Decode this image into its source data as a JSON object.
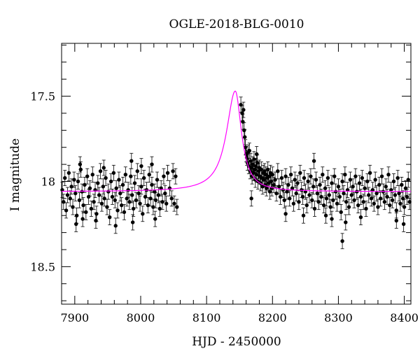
{
  "chart_data": {
    "type": "scatter",
    "title": "OGLE-2018-BLG-0010",
    "xlabel": "HJD - 2450000",
    "ylabel": "I magnitude",
    "xlim": [
      7880,
      8410
    ],
    "ylim": [
      18.72,
      17.19
    ],
    "y_inverted": true,
    "x_major_ticks": [
      7900,
      8000,
      8100,
      8200,
      8300,
      8400
    ],
    "x_tick_labels": [
      "7900",
      "8000",
      "8100",
      "8200",
      "8300",
      "8400"
    ],
    "x_minor_step": 20,
    "y_major_ticks": [
      17.5,
      18,
      18.5
    ],
    "y_tick_labels": [
      "17.5",
      "18",
      "18.5"
    ],
    "y_minor_step": 0.1,
    "grid": false,
    "colors": {
      "data": "#000000",
      "model": "#ff00ff",
      "axes": "#000000"
    },
    "series": [
      {
        "kind": "observations-with-error-bars",
        "marker": "filled-circle",
        "typical_error": 0.045,
        "points": [
          [
            7881,
            18.05
          ],
          [
            7883,
            18.12
          ],
          [
            7885,
            17.98
          ],
          [
            7887,
            18.17
          ],
          [
            7889,
            18.08
          ],
          [
            7891,
            17.95
          ],
          [
            7893,
            18.1
          ],
          [
            7895,
            18.03
          ],
          [
            7897,
            18.15
          ],
          [
            7899,
            17.99
          ],
          [
            7901,
            18.07
          ],
          [
            7903,
            18.2
          ],
          [
            7905,
            18.0
          ],
          [
            7907,
            18.11
          ],
          [
            7909,
            17.93
          ],
          [
            7911,
            18.06
          ],
          [
            7913,
            18.14
          ],
          [
            7915,
            18.02
          ],
          [
            7917,
            18.18
          ],
          [
            7919,
            17.97
          ],
          [
            7921,
            18.09
          ],
          [
            7923,
            18.04
          ],
          [
            7925,
            18.16
          ],
          [
            7927,
            17.96
          ],
          [
            7929,
            18.12
          ],
          [
            7931,
            18.05
          ],
          [
            7933,
            18.19
          ],
          [
            7935,
            18.01
          ],
          [
            7937,
            18.08
          ],
          [
            7939,
            17.94
          ],
          [
            7941,
            18.13
          ],
          [
            7943,
            18.03
          ],
          [
            7945,
            18.1
          ],
          [
            7947,
            17.98
          ],
          [
            7949,
            18.15
          ],
          [
            7951,
            18.06
          ],
          [
            7953,
            18.21
          ],
          [
            7955,
            18.0
          ],
          [
            7957,
            18.09
          ],
          [
            7959,
            17.95
          ],
          [
            7961,
            18.11
          ],
          [
            7963,
            18.04
          ],
          [
            7965,
            18.17
          ],
          [
            7967,
            17.99
          ],
          [
            7969,
            18.07
          ],
          [
            7971,
            18.14
          ],
          [
            7973,
            18.02
          ],
          [
            7975,
            18.18
          ],
          [
            7977,
            17.96
          ],
          [
            7979,
            18.1
          ],
          [
            7981,
            18.05
          ],
          [
            7983,
            18.12
          ],
          [
            7985,
            17.97
          ],
          [
            7987,
            18.08
          ],
          [
            7989,
            18.16
          ],
          [
            7991,
            18.01
          ],
          [
            7993,
            18.11
          ],
          [
            7995,
            17.94
          ],
          [
            7997,
            18.07
          ],
          [
            7999,
            18.13
          ],
          [
            8001,
            18.03
          ],
          [
            8003,
            18.19
          ],
          [
            8005,
            17.98
          ],
          [
            8007,
            18.09
          ],
          [
            8009,
            18.05
          ],
          [
            8011,
            18.14
          ],
          [
            8013,
            17.96
          ],
          [
            8015,
            18.1
          ],
          [
            8017,
            18.02
          ],
          [
            8019,
            18.15
          ],
          [
            8021,
            18.06
          ],
          [
            8023,
            18.11
          ],
          [
            8025,
            17.99
          ],
          [
            8027,
            18.08
          ],
          [
            8029,
            18.16
          ],
          [
            8031,
            18.04
          ],
          [
            8033,
            18.12
          ],
          [
            8035,
            17.97
          ],
          [
            8037,
            18.07
          ],
          [
            8039,
            18.13
          ],
          [
            7902,
            18.25
          ],
          [
            7912,
            18.22
          ],
          [
            7932,
            18.23
          ],
          [
            7962,
            18.26
          ],
          [
            7988,
            18.24
          ],
          [
            7908,
            17.9
          ],
          [
            7944,
            17.92
          ],
          [
            7986,
            17.88
          ],
          [
            8001,
            17.91
          ],
          [
            8017,
            17.9
          ],
          [
            8022,
            18.22
          ],
          [
            8041,
            17.95
          ],
          [
            8044,
            18.04
          ],
          [
            8047,
            18.1
          ],
          [
            8049,
            17.94
          ],
          [
            8051,
            18.13
          ],
          [
            8053,
            17.97
          ],
          [
            8055,
            18.15
          ],
          [
            8152,
            17.55
          ],
          [
            8154,
            17.6
          ],
          [
            8155,
            17.65
          ],
          [
            8156,
            17.58
          ],
          [
            8157,
            17.7
          ],
          [
            8158,
            17.74
          ],
          [
            8159,
            17.8
          ],
          [
            8160,
            17.84
          ],
          [
            8161,
            17.86
          ],
          [
            8162,
            17.89
          ],
          [
            8163,
            17.83
          ],
          [
            8164,
            17.91
          ],
          [
            8165,
            17.82
          ],
          [
            8166,
            17.94
          ],
          [
            8167,
            17.88
          ],
          [
            8168,
            17.92
          ],
          [
            8169,
            17.97
          ],
          [
            8170,
            17.9
          ],
          [
            8171,
            17.95
          ],
          [
            8172,
            17.87
          ],
          [
            8173,
            17.93
          ],
          [
            8174,
            17.99
          ],
          [
            8175,
            17.91
          ],
          [
            8176,
            17.96
          ],
          [
            8177,
            17.89
          ],
          [
            8178,
            18.0
          ],
          [
            8179,
            17.94
          ],
          [
            8180,
            17.92
          ],
          [
            8181,
            17.97
          ],
          [
            8182,
            18.01
          ],
          [
            8183,
            17.93
          ],
          [
            8184,
            17.98
          ],
          [
            8185,
            18.03
          ],
          [
            8186,
            17.95
          ],
          [
            8187,
            17.99
          ],
          [
            8188,
            17.94
          ],
          [
            8189,
            18.02
          ],
          [
            8190,
            17.96
          ],
          [
            8191,
            18.04
          ],
          [
            8192,
            17.98
          ],
          [
            8193,
            17.93
          ],
          [
            8194,
            18.01
          ],
          [
            8195,
            17.97
          ],
          [
            8196,
            18.06
          ],
          [
            8197,
            17.95
          ],
          [
            8198,
            18.0
          ],
          [
            8199,
            18.04
          ],
          [
            8200,
            17.96
          ],
          [
            8202,
            18.02
          ],
          [
            8204,
            17.99
          ],
          [
            8206,
            18.07
          ],
          [
            8208,
            17.94
          ],
          [
            8210,
            18.03
          ],
          [
            8212,
            18.09
          ],
          [
            8214,
            17.98
          ],
          [
            8216,
            18.05
          ],
          [
            8218,
            18.11
          ],
          [
            8220,
            17.97
          ],
          [
            8222,
            18.06
          ],
          [
            8224,
            18.02
          ],
          [
            8226,
            18.1
          ],
          [
            8228,
            17.96
          ],
          [
            8230,
            18.04
          ],
          [
            8232,
            18.13
          ],
          [
            8234,
            17.99
          ],
          [
            8236,
            18.07
          ],
          [
            8238,
            18.01
          ],
          [
            8240,
            18.12
          ],
          [
            8242,
            17.95
          ],
          [
            8244,
            18.05
          ],
          [
            8246,
            18.09
          ],
          [
            8248,
            17.98
          ],
          [
            8250,
            18.06
          ],
          [
            8252,
            18.14
          ],
          [
            8254,
            18.0
          ],
          [
            8256,
            18.08
          ],
          [
            8258,
            17.97
          ],
          [
            8260,
            18.11
          ],
          [
            8262,
            18.03
          ],
          [
            8264,
            18.16
          ],
          [
            8266,
            17.99
          ],
          [
            8268,
            18.07
          ],
          [
            8270,
            18.12
          ],
          [
            8272,
            18.02
          ],
          [
            8274,
            18.09
          ],
          [
            8276,
            17.96
          ],
          [
            8278,
            18.14
          ],
          [
            8280,
            18.04
          ],
          [
            8282,
            18.1
          ],
          [
            8284,
            17.98
          ],
          [
            8286,
            18.08
          ],
          [
            8288,
            18.15
          ],
          [
            8290,
            18.01
          ],
          [
            8292,
            18.11
          ],
          [
            8294,
            17.97
          ],
          [
            8296,
            18.06
          ],
          [
            8298,
            18.13
          ],
          [
            8300,
            18.03
          ],
          [
            8302,
            18.09
          ],
          [
            8304,
            18.18
          ],
          [
            8306,
            18.0
          ],
          [
            8308,
            18.07
          ],
          [
            8310,
            17.96
          ],
          [
            8312,
            18.12
          ],
          [
            8314,
            18.05
          ],
          [
            8316,
            18.15
          ],
          [
            8318,
            17.99
          ],
          [
            8320,
            18.08
          ],
          [
            8322,
            18.03
          ],
          [
            8324,
            18.11
          ],
          [
            8326,
            17.97
          ],
          [
            8328,
            18.06
          ],
          [
            8330,
            18.14
          ],
          [
            8332,
            18.01
          ],
          [
            8334,
            18.09
          ],
          [
            8336,
            17.98
          ],
          [
            8338,
            18.12
          ],
          [
            8340,
            18.04
          ],
          [
            8342,
            18.16
          ],
          [
            8344,
            18.0
          ],
          [
            8346,
            18.08
          ],
          [
            8348,
            17.95
          ],
          [
            8350,
            18.1
          ],
          [
            8352,
            18.05
          ],
          [
            8354,
            18.13
          ],
          [
            8356,
            17.99
          ],
          [
            8358,
            18.07
          ],
          [
            8360,
            18.15
          ],
          [
            8362,
            18.02
          ],
          [
            8364,
            18.1
          ],
          [
            8366,
            17.97
          ],
          [
            8368,
            18.06
          ],
          [
            8370,
            18.12
          ],
          [
            8372,
            18.03
          ],
          [
            8374,
            18.09
          ],
          [
            8376,
            17.96
          ],
          [
            8378,
            18.14
          ],
          [
            8380,
            18.05
          ],
          [
            8382,
            18.11
          ],
          [
            8384,
            18.0
          ],
          [
            8386,
            18.08
          ],
          [
            8388,
            18.17
          ],
          [
            8390,
            17.98
          ],
          [
            8392,
            18.07
          ],
          [
            8394,
            18.13
          ],
          [
            8396,
            18.02
          ],
          [
            8398,
            18.1
          ],
          [
            8400,
            18.15
          ],
          [
            8402,
            18.04
          ],
          [
            8404,
            18.09
          ],
          [
            8406,
            17.99
          ],
          [
            8408,
            18.12
          ],
          [
            8306,
            18.35
          ],
          [
            8290,
            18.22
          ],
          [
            8334,
            18.21
          ],
          [
            8388,
            18.23
          ],
          [
            8399,
            18.25
          ],
          [
            8220,
            18.19
          ],
          [
            8168,
            18.1
          ],
          [
            8176,
            17.84
          ],
          [
            8247,
            18.2
          ],
          [
            8263,
            17.88
          ],
          [
            8281,
            18.2
          ],
          [
            8311,
            18.24
          ]
        ]
      },
      {
        "kind": "model-curve",
        "line": "solid",
        "baseline_mag": 18.06,
        "peak_time": 8143.5,
        "peak_mag": 17.47,
        "x_range": [
          7880,
          8410
        ]
      }
    ]
  }
}
